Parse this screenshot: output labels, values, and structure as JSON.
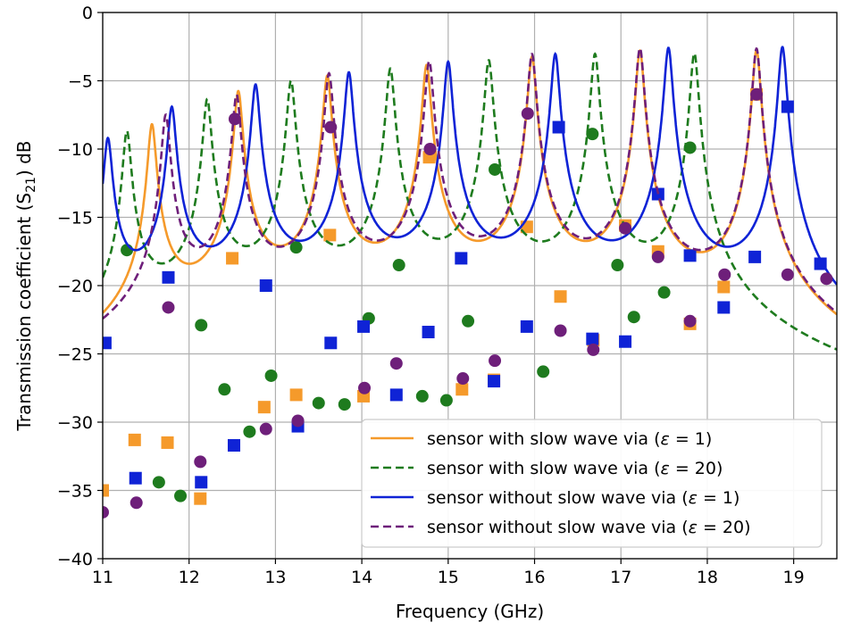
{
  "chart_data": {
    "type": "line",
    "xlabel": "Frequency (GHz)",
    "ylabel": "Transmission coefficient (S",
    "ylabel_sub": "21",
    "ylabel_suffix": ") dB",
    "xlim": [
      11,
      19.5
    ],
    "ylim": [
      -40,
      0
    ],
    "xticks": [
      11,
      12,
      13,
      14,
      15,
      16,
      17,
      18,
      19
    ],
    "yticks": [
      0,
      -5,
      -10,
      -15,
      -20,
      -25,
      -30,
      -35,
      -40
    ],
    "grid": true,
    "legend_position": "lower-right",
    "series": [
      {
        "name": "sensor with slow wave via (ε = 1)",
        "legend_label": "sensor with slow wave via (",
        "color": "#F59A2B",
        "line_style": "solid",
        "marker": "square",
        "resonances": [
          11.57,
          12.57,
          13.6,
          14.75,
          15.97,
          17.22,
          18.57
        ],
        "peak_values": [
          -9.8,
          -7.2,
          -6.0,
          -5.1,
          -4.4,
          -3.8,
          -3.5
        ],
        "markers": [
          {
            "x": 11.0,
            "y": -35.0
          },
          {
            "x": 11.37,
            "y": -31.3
          },
          {
            "x": 11.75,
            "y": -31.5
          },
          {
            "x": 12.13,
            "y": -35.6
          },
          {
            "x": 12.5,
            "y": -18.0
          },
          {
            "x": 12.87,
            "y": -28.9
          },
          {
            "x": 13.24,
            "y": -28.0
          },
          {
            "x": 13.63,
            "y": -16.3
          },
          {
            "x": 14.02,
            "y": -28.1
          },
          {
            "x": 14.78,
            "y": -10.6
          },
          {
            "x": 15.16,
            "y": -27.6
          },
          {
            "x": 15.53,
            "y": -26.9
          },
          {
            "x": 15.91,
            "y": -15.7
          },
          {
            "x": 16.3,
            "y": -20.8
          },
          {
            "x": 16.68,
            "y": -24.0
          },
          {
            "x": 17.05,
            "y": -15.6
          },
          {
            "x": 17.43,
            "y": -17.5
          },
          {
            "x": 17.8,
            "y": -22.8
          },
          {
            "x": 18.19,
            "y": -20.1
          },
          {
            "x": 18.57,
            "y": -6.0
          }
        ]
      },
      {
        "name": "sensor with slow wave via (ε = 20)",
        "legend_label": "sensor with slow wave via (",
        "color": "#1E7B1E",
        "line_style": "dashed",
        "marker": "circle",
        "resonances": [
          11.28,
          12.21,
          13.18,
          14.33,
          15.47,
          16.7,
          17.85
        ],
        "peak_values": [
          -10.4,
          -7.9,
          -6.4,
          -5.4,
          -4.7,
          -4.1,
          -3.8
        ],
        "markers": [
          {
            "x": 11.28,
            "y": -17.4
          },
          {
            "x": 11.65,
            "y": -34.4
          },
          {
            "x": 11.9,
            "y": -35.4
          },
          {
            "x": 12.14,
            "y": -22.9
          },
          {
            "x": 12.41,
            "y": -27.6
          },
          {
            "x": 12.7,
            "y": -30.7
          },
          {
            "x": 12.95,
            "y": -26.6
          },
          {
            "x": 13.24,
            "y": -17.2
          },
          {
            "x": 13.5,
            "y": -28.6
          },
          {
            "x": 13.8,
            "y": -28.7
          },
          {
            "x": 14.08,
            "y": -22.4
          },
          {
            "x": 14.43,
            "y": -18.5
          },
          {
            "x": 14.7,
            "y": -28.1
          },
          {
            "x": 14.98,
            "y": -28.4
          },
          {
            "x": 15.23,
            "y": -22.6
          },
          {
            "x": 15.54,
            "y": -11.5
          },
          {
            "x": 16.1,
            "y": -26.3
          },
          {
            "x": 16.67,
            "y": -8.9
          },
          {
            "x": 16.96,
            "y": -18.5
          },
          {
            "x": 17.15,
            "y": -22.3
          },
          {
            "x": 17.5,
            "y": -20.5
          },
          {
            "x": 17.8,
            "y": -9.9
          }
        ]
      },
      {
        "name": "sensor without slow wave via (ε = 1)",
        "legend_label": "sensor without slow wave via (",
        "color": "#0F23D6",
        "line_style": "solid",
        "marker": "square",
        "resonances": [
          11.06,
          11.8,
          12.77,
          13.85,
          15.0,
          16.24,
          17.55,
          18.87
        ],
        "peak_values": [
          -11.3,
          -8.7,
          -6.8,
          -5.8,
          -4.9,
          -4.2,
          -3.6,
          -3.3
        ],
        "markers": [
          {
            "x": 11.03,
            "y": -24.2
          },
          {
            "x": 11.38,
            "y": -34.1
          },
          {
            "x": 11.76,
            "y": -19.4
          },
          {
            "x": 12.14,
            "y": -34.4
          },
          {
            "x": 12.52,
            "y": -31.7
          },
          {
            "x": 12.89,
            "y": -20.0
          },
          {
            "x": 13.26,
            "y": -30.3
          },
          {
            "x": 13.64,
            "y": -24.2
          },
          {
            "x": 14.02,
            "y": -23.0
          },
          {
            "x": 14.4,
            "y": -28.0
          },
          {
            "x": 14.77,
            "y": -23.4
          },
          {
            "x": 15.15,
            "y": -18.0
          },
          {
            "x": 15.53,
            "y": -27.0
          },
          {
            "x": 15.91,
            "y": -23.0
          },
          {
            "x": 16.28,
            "y": -8.4
          },
          {
            "x": 16.67,
            "y": -23.9
          },
          {
            "x": 17.05,
            "y": -24.1
          },
          {
            "x": 17.43,
            "y": -13.3
          },
          {
            "x": 17.8,
            "y": -17.8
          },
          {
            "x": 18.19,
            "y": -21.6
          },
          {
            "x": 18.55,
            "y": -17.9
          },
          {
            "x": 18.93,
            "y": -6.9
          },
          {
            "x": 19.31,
            "y": -18.4
          }
        ]
      },
      {
        "name": "sensor without slow wave via (ε = 20)",
        "legend_label": "sensor without slow wave via (",
        "color": "#6E1F7A",
        "line_style": "dashed",
        "marker": "circle",
        "resonances": [
          11.73,
          12.55,
          13.62,
          14.78,
          15.97,
          17.22,
          18.57
        ],
        "peak_values": [
          -9.1,
          -7.6,
          -5.8,
          -4.8,
          -4.2,
          -3.6,
          -3.4
        ],
        "markers": [
          {
            "x": 11.0,
            "y": -36.6
          },
          {
            "x": 11.39,
            "y": -35.9
          },
          {
            "x": 11.76,
            "y": -21.6
          },
          {
            "x": 12.13,
            "y": -32.9
          },
          {
            "x": 12.53,
            "y": -7.8
          },
          {
            "x": 12.89,
            "y": -30.5
          },
          {
            "x": 13.26,
            "y": -29.9
          },
          {
            "x": 13.64,
            "y": -8.4
          },
          {
            "x": 14.03,
            "y": -27.5
          },
          {
            "x": 14.4,
            "y": -25.7
          },
          {
            "x": 14.79,
            "y": -10.0
          },
          {
            "x": 15.17,
            "y": -26.8
          },
          {
            "x": 15.54,
            "y": -25.5
          },
          {
            "x": 15.92,
            "y": -7.4
          },
          {
            "x": 16.3,
            "y": -23.3
          },
          {
            "x": 16.68,
            "y": -24.7
          },
          {
            "x": 17.05,
            "y": -15.8
          },
          {
            "x": 17.43,
            "y": -17.9
          },
          {
            "x": 17.8,
            "y": -22.6
          },
          {
            "x": 18.2,
            "y": -19.2
          },
          {
            "x": 18.57,
            "y": -6.0
          },
          {
            "x": 18.93,
            "y": -19.2
          },
          {
            "x": 19.38,
            "y": -19.5
          }
        ]
      }
    ]
  }
}
